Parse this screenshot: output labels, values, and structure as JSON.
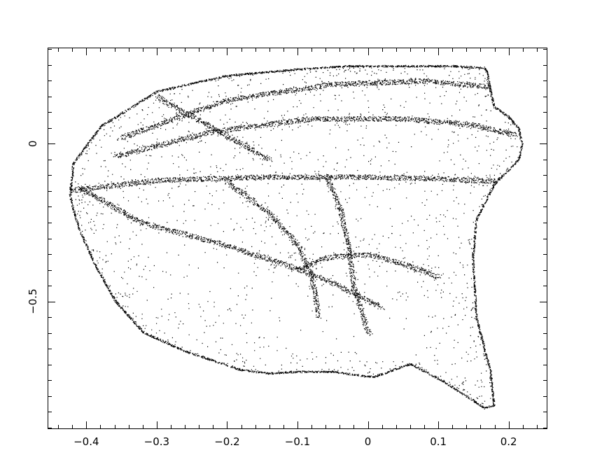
{
  "chart_data": {
    "type": "scatter",
    "title": "",
    "xlabel": "",
    "ylabel": "",
    "xlim": [
      -0.455,
      0.255
    ],
    "ylim": [
      -0.905,
      0.305
    ],
    "grid": false,
    "x_ticks": [
      {
        "value": -0.4,
        "label": "−0.4"
      },
      {
        "value": -0.3,
        "label": "−0.3"
      },
      {
        "value": -0.2,
        "label": "−0.2"
      },
      {
        "value": -0.1,
        "label": "−0.1"
      },
      {
        "value": 0,
        "label": "0"
      },
      {
        "value": 0.1,
        "label": "0.1"
      },
      {
        "value": 0.2,
        "label": "0.2"
      }
    ],
    "y_ticks": [
      {
        "value": 0,
        "label": "0"
      },
      {
        "value": -0.5,
        "label": "−0.5"
      }
    ],
    "x_minor_step": 0.02,
    "y_minor_step": 0.05,
    "point_color": "#000000",
    "outline": {
      "x": [
        -0.425,
        -0.42,
        -0.38,
        -0.3,
        -0.2,
        -0.1,
        -0.03,
        0.05,
        0.12,
        0.165,
        0.17,
        0.175,
        0.18,
        0.2,
        0.215,
        0.22,
        0.215,
        0.18,
        0.155,
        0.15,
        0.155,
        0.175,
        0.18,
        0.165,
        0.11,
        0.06,
        0.01,
        0,
        -0.05,
        -0.1,
        -0.14,
        -0.18,
        -0.26,
        -0.32,
        -0.36,
        -0.39,
        -0.41,
        -0.42
      ],
      "y": [
        -0.16,
        -0.06,
        0.06,
        0.17,
        0.22,
        0.24,
        0.25,
        0.25,
        0.25,
        0.245,
        0.23,
        0.17,
        0.12,
        0.09,
        0.05,
        0.0,
        -0.05,
        -0.13,
        -0.24,
        -0.36,
        -0.55,
        -0.72,
        -0.83,
        -0.84,
        -0.76,
        -0.7,
        -0.74,
        -0.74,
        -0.725,
        -0.725,
        -0.73,
        -0.72,
        -0.66,
        -0.6,
        -0.5,
        -0.38,
        -0.28,
        -0.21
      ]
    },
    "bands": [
      {
        "x": [
          -0.43,
          -0.3,
          -0.15,
          0,
          0.1,
          0.2
        ],
        "y": [
          -0.15,
          -0.115,
          -0.105,
          -0.105,
          -0.11,
          -0.12
        ]
      },
      {
        "x": [
          -0.36,
          -0.22,
          -0.08,
          0.05,
          0.15,
          0.21
        ],
        "y": [
          -0.04,
          0.04,
          0.08,
          0.08,
          0.06,
          0.03
        ]
      },
      {
        "x": [
          -0.41,
          -0.32,
          -0.22,
          -0.12,
          -0.05,
          0.02
        ],
        "y": [
          -0.14,
          -0.25,
          -0.31,
          -0.38,
          -0.44,
          -0.52
        ]
      },
      {
        "x": [
          -0.1,
          -0.06,
          0,
          0.05,
          0.1
        ],
        "y": [
          -0.4,
          -0.36,
          -0.35,
          -0.38,
          -0.42
        ]
      },
      {
        "x": [
          -0.2,
          -0.14,
          -0.1,
          -0.08,
          -0.07
        ],
        "y": [
          -0.12,
          -0.22,
          -0.32,
          -0.42,
          -0.55
        ]
      },
      {
        "x": [
          -0.06,
          -0.04,
          -0.03,
          -0.02,
          0
        ],
        "y": [
          -0.1,
          -0.2,
          -0.3,
          -0.45,
          -0.6
        ]
      },
      {
        "x": [
          -0.3,
          -0.26,
          -0.22,
          -0.18,
          -0.14
        ],
        "y": [
          0.15,
          0.1,
          0.05,
          0.0,
          -0.05
        ]
      },
      {
        "x": [
          -0.35,
          -0.2,
          -0.05,
          0.08,
          0.18
        ],
        "y": [
          0.02,
          0.14,
          0.19,
          0.2,
          0.18
        ]
      }
    ],
    "cavities": [
      {
        "x": [
          -0.3,
          -0.21,
          -0.16,
          -0.19,
          -0.27,
          -0.31
        ],
        "y": [
          -0.19,
          -0.24,
          -0.36,
          -0.5,
          -0.45,
          -0.3
        ]
      },
      {
        "x": [
          0,
          0.07,
          0.1,
          0.07,
          0,
          -0.04
        ],
        "y": [
          -0.49,
          -0.5,
          -0.6,
          -0.68,
          -0.69,
          -0.6
        ]
      },
      {
        "x": [
          0.0,
          0.05,
          0.06,
          0.02,
          -0.03,
          -0.04
        ],
        "y": [
          -0.17,
          -0.16,
          -0.22,
          -0.28,
          -0.27,
          -0.22
        ]
      },
      {
        "x": [
          -0.1,
          -0.05,
          -0.02,
          -0.05,
          -0.1,
          -0.13
        ],
        "y": [
          0.05,
          0.06,
          0.0,
          -0.03,
          -0.02,
          0.02
        ]
      },
      {
        "x": [
          -0.07,
          -0.02,
          0.0,
          -0.03,
          -0.08,
          -0.1
        ],
        "y": [
          -0.46,
          -0.46,
          -0.56,
          -0.66,
          -0.66,
          -0.56
        ]
      },
      {
        "x": [
          -0.15,
          -0.11,
          -0.1,
          -0.13,
          -0.17,
          -0.18
        ],
        "y": [
          -0.42,
          -0.42,
          -0.52,
          -0.62,
          -0.6,
          -0.5
        ]
      }
    ]
  }
}
